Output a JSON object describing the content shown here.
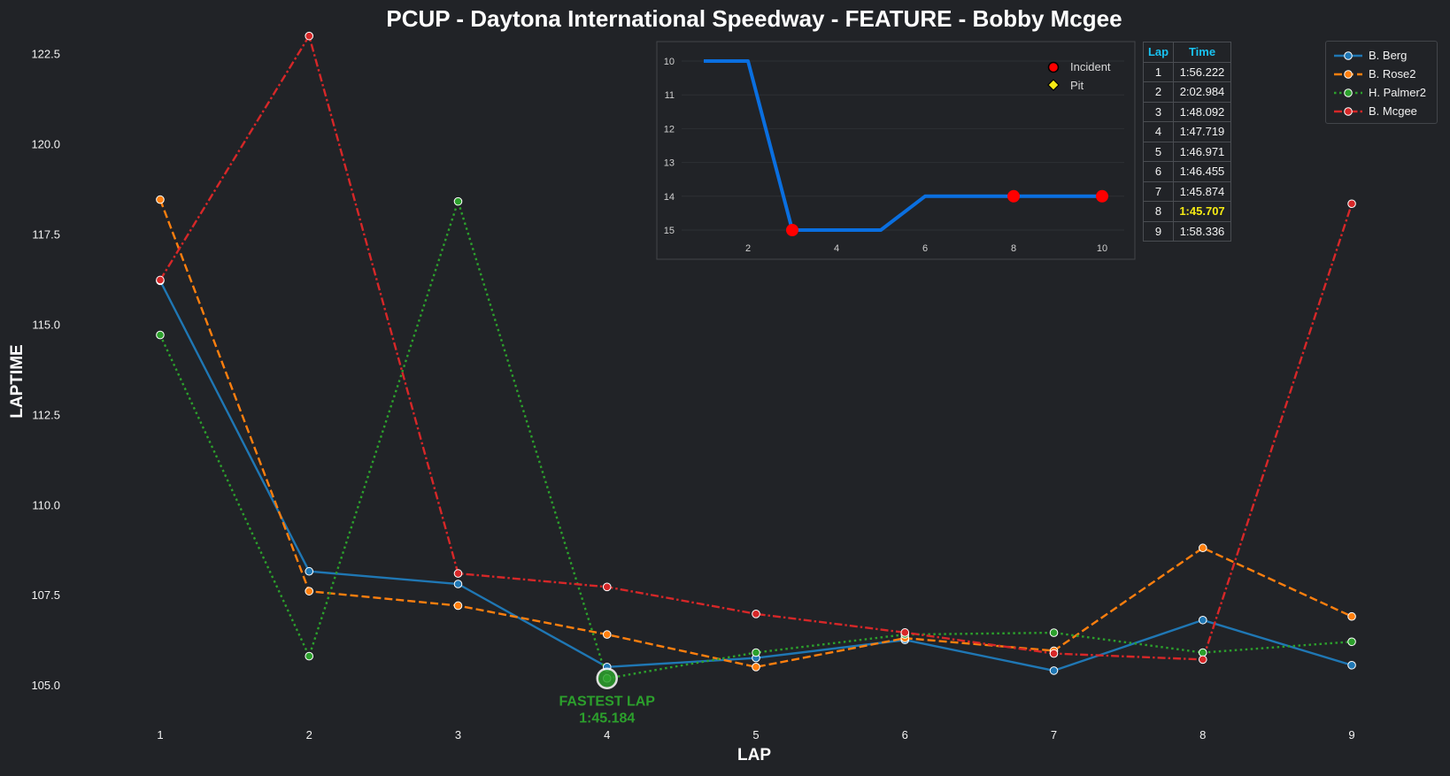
{
  "chart_data": {
    "type": "line",
    "title": "PCUP - Daytona International Speedway - FEATURE - Bobby Mcgee",
    "xlabel": "LAP",
    "ylabel": "LAPTIME",
    "x": [
      1,
      2,
      3,
      4,
      5,
      6,
      7,
      8,
      9
    ],
    "xlim": [
      0.4,
      9.6
    ],
    "ylim": [
      104.0,
      123.0
    ],
    "yticks": [
      105.0,
      107.5,
      110.0,
      112.5,
      115.0,
      117.5,
      120.0,
      122.5
    ],
    "grid": false,
    "legend_position": "top-right",
    "series": [
      {
        "name": "B. Berg",
        "color": "#1f77b4",
        "dash": "solid",
        "values": [
          116.2,
          108.15,
          107.8,
          105.5,
          105.75,
          106.25,
          105.4,
          106.8,
          105.55
        ]
      },
      {
        "name": "B. Rose2",
        "color": "#ff7f0e",
        "dash": "dashed",
        "values": [
          118.45,
          107.6,
          107.2,
          106.4,
          105.5,
          106.3,
          105.95,
          108.8,
          106.9
        ]
      },
      {
        "name": "H. Palmer2",
        "color": "#2ca02c",
        "dash": "dotted",
        "values": [
          114.7,
          105.8,
          118.4,
          105.184,
          105.9,
          106.4,
          106.45,
          105.9,
          106.2
        ]
      },
      {
        "name": "B. Mcgee",
        "color": "#d62728",
        "dash": "dashdot",
        "values": [
          116.222,
          122.984,
          108.092,
          107.719,
          106.971,
          106.455,
          105.874,
          105.707,
          118.336
        ]
      }
    ],
    "annotation": {
      "text_line1": "FASTEST LAP",
      "text_line2": "1:45.184",
      "x": 4,
      "y": 105.184,
      "color": "#2ca02c"
    },
    "inset": {
      "type": "line",
      "x": [
        1,
        2,
        3,
        4,
        5,
        6,
        7,
        8,
        9,
        10
      ],
      "values": [
        10,
        10,
        15,
        15,
        15,
        14,
        14,
        14,
        14,
        14
      ],
      "xlim": [
        0.5,
        10.5
      ],
      "ylim": [
        10,
        15
      ],
      "xticks": [
        2,
        4,
        6,
        8,
        10
      ],
      "yticks": [
        10,
        11,
        12,
        13,
        14,
        15
      ],
      "inverted_y": true,
      "line_color": "#0a6fe0",
      "incidents": [
        {
          "x": 3,
          "y": 15
        },
        {
          "x": 8,
          "y": 14
        },
        {
          "x": 10,
          "y": 14
        }
      ],
      "legend": [
        {
          "label": "Incident",
          "color": "#ff0000",
          "marker": "circle"
        },
        {
          "label": "Pit",
          "color": "#f5ea14",
          "marker": "diamond"
        }
      ]
    },
    "lap_table": {
      "headers": [
        "Lap",
        "Time"
      ],
      "rows": [
        [
          "1",
          "1:56.222"
        ],
        [
          "2",
          "2:02.984"
        ],
        [
          "3",
          "1:48.092"
        ],
        [
          "4",
          "1:47.719"
        ],
        [
          "5",
          "1:46.971"
        ],
        [
          "6",
          "1:46.455"
        ],
        [
          "7",
          "1:45.874"
        ],
        [
          "8",
          "1:45.707"
        ],
        [
          "9",
          "1:58.336"
        ]
      ],
      "best_lap": "8",
      "best_color": "#f5ea14",
      "header_color": "#19c3f2"
    }
  }
}
